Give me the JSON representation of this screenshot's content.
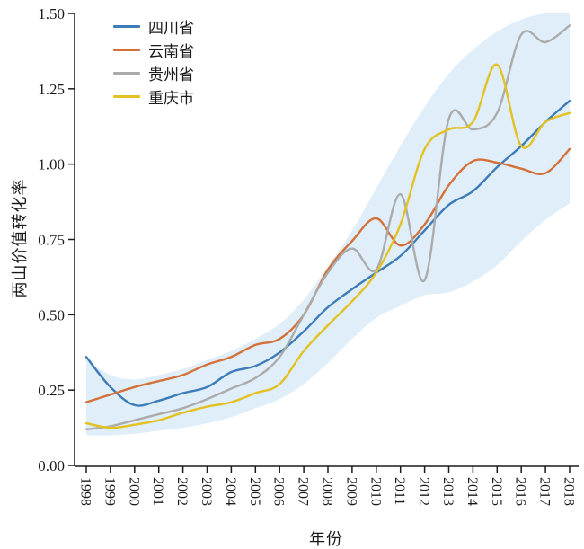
{
  "chart_data": {
    "type": "line",
    "title": "",
    "xlabel": "年份",
    "ylabel": "两山价值转化率",
    "x": [
      1998,
      1999,
      2000,
      2001,
      2002,
      2003,
      2004,
      2005,
      2006,
      2007,
      2008,
      2009,
      2010,
      2011,
      2012,
      2013,
      2014,
      2015,
      2016,
      2017,
      2018
    ],
    "ylim": [
      0.0,
      1.5
    ],
    "ytick_values": [
      0.0,
      0.25,
      0.5,
      0.75,
      1.0,
      1.25,
      1.5
    ],
    "ytick_labels": [
      "0.00",
      "0.25",
      "0.50",
      "0.75",
      "1.00",
      "1.25",
      "1.50"
    ],
    "grid": false,
    "legend_position": "top-left-inside",
    "series": [
      {
        "name": "四川省",
        "color": "#3D7CB8",
        "values": [
          0.36,
          0.26,
          0.2,
          0.215,
          0.24,
          0.26,
          0.31,
          0.33,
          0.375,
          0.445,
          0.525,
          0.585,
          0.64,
          0.695,
          0.78,
          0.865,
          0.91,
          0.99,
          1.06,
          1.14,
          1.21
        ]
      },
      {
        "name": "云南省",
        "color": "#D4713B",
        "values": [
          0.21,
          0.235,
          0.26,
          0.28,
          0.3,
          0.335,
          0.36,
          0.4,
          0.42,
          0.5,
          0.65,
          0.745,
          0.82,
          0.73,
          0.8,
          0.93,
          1.01,
          1.005,
          0.985,
          0.97,
          1.05
        ]
      },
      {
        "name": "贵州省",
        "color": "#ABABAB",
        "values": [
          0.12,
          0.13,
          0.15,
          0.17,
          0.19,
          0.22,
          0.255,
          0.29,
          0.36,
          0.5,
          0.64,
          0.72,
          0.65,
          0.9,
          0.615,
          1.15,
          1.115,
          1.17,
          1.43,
          1.405,
          1.46
        ]
      },
      {
        "name": "重庆市",
        "color": "#E3C122",
        "values": [
          0.14,
          0.125,
          0.135,
          0.15,
          0.175,
          0.195,
          0.21,
          0.24,
          0.27,
          0.38,
          0.465,
          0.545,
          0.64,
          0.8,
          1.05,
          1.115,
          1.14,
          1.33,
          1.06,
          1.14,
          1.17
        ]
      }
    ],
    "band": {
      "description": "confidence-envelope",
      "color": "#DFEEF8",
      "upper": [
        0.35,
        0.3,
        0.285,
        0.3,
        0.32,
        0.35,
        0.38,
        0.42,
        0.47,
        0.55,
        0.66,
        0.78,
        0.92,
        1.06,
        1.19,
        1.3,
        1.38,
        1.44,
        1.48,
        1.5,
        1.5
      ],
      "lower": [
        0.1,
        0.1,
        0.105,
        0.115,
        0.125,
        0.14,
        0.16,
        0.19,
        0.22,
        0.27,
        0.34,
        0.42,
        0.49,
        0.53,
        0.565,
        0.575,
        0.61,
        0.665,
        0.745,
        0.815,
        0.87
      ]
    }
  },
  "colors": {
    "axis": "#1a1a1a",
    "background": "#ffffff"
  }
}
